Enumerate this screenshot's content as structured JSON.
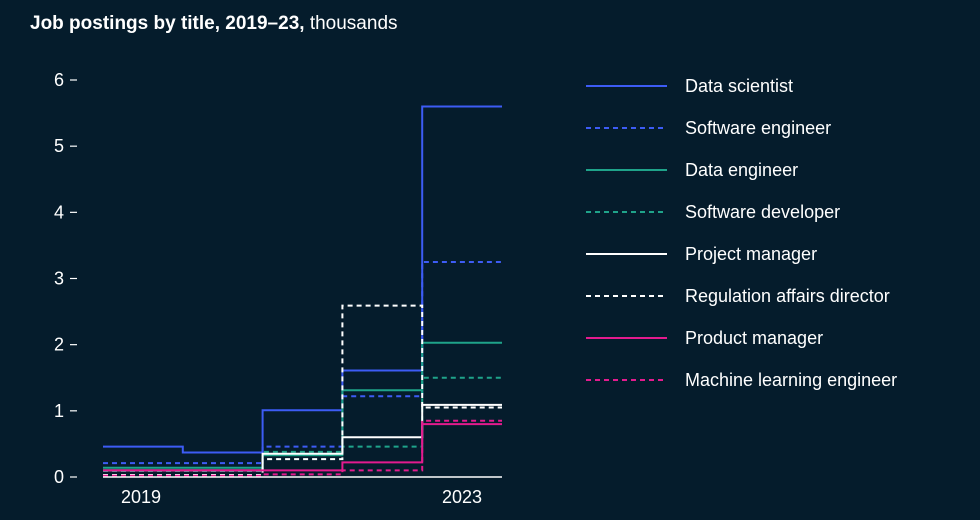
{
  "header": {
    "title_bold": "Job postings by title, 2019–23,",
    "title_unit": "thousands"
  },
  "chart_data": {
    "type": "line",
    "step": true,
    "x": [
      2019,
      2020,
      2021,
      2022,
      2023
    ],
    "x_tick_labels": [
      "2019",
      "2023"
    ],
    "ylim": [
      0,
      6
    ],
    "y_ticks": [
      0,
      1,
      2,
      3,
      4,
      5,
      6
    ],
    "grid": false,
    "legend_position": "right",
    "series": [
      {
        "name": "Data scientist",
        "color": "#3d5cf5",
        "dash": "solid",
        "values": [
          0.46,
          0.37,
          1.01,
          1.61,
          5.6
        ]
      },
      {
        "name": "Software engineer",
        "color": "#3d5cf5",
        "dash": "dashed",
        "values": [
          0.21,
          0.21,
          0.46,
          1.22,
          3.25
        ]
      },
      {
        "name": "Data engineer",
        "color": "#1fa38a",
        "dash": "solid",
        "values": [
          0.14,
          0.14,
          0.33,
          1.31,
          2.03
        ]
      },
      {
        "name": "Software developer",
        "color": "#1fa38a",
        "dash": "dashed",
        "values": [
          0.09,
          0.09,
          0.38,
          0.46,
          1.5
        ]
      },
      {
        "name": "Project manager",
        "color": "#ffffff",
        "dash": "solid",
        "values": [
          0.1,
          0.1,
          0.35,
          0.6,
          1.09
        ]
      },
      {
        "name": "Regulation affairs director",
        "color": "#ffffff",
        "dash": "dashed",
        "values": [
          0.03,
          0.03,
          0.27,
          2.59,
          1.05
        ]
      },
      {
        "name": "Product manager",
        "color": "#e31b8e",
        "dash": "solid",
        "values": [
          0.1,
          0.1,
          0.1,
          0.22,
          0.8
        ]
      },
      {
        "name": "Machine learning engineer",
        "color": "#e31b8e",
        "dash": "dashed",
        "values": [
          0.02,
          0.02,
          0.04,
          0.1,
          0.85
        ]
      }
    ]
  }
}
